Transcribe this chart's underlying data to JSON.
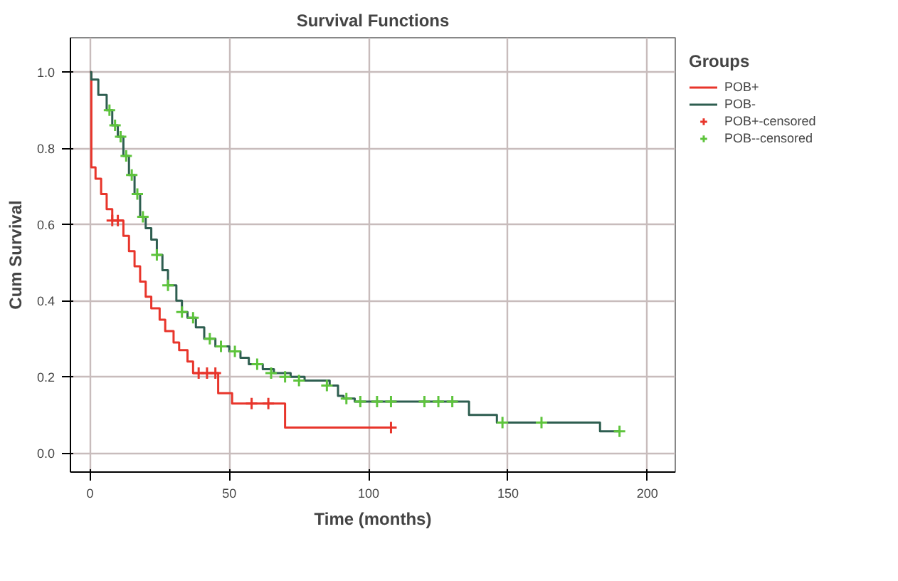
{
  "chart_data": {
    "type": "step",
    "title": "Survival Functions",
    "xlabel": "Time (months)",
    "ylabel": "Cum Survival",
    "legend_title": "Groups",
    "legend": "right",
    "grid": true,
    "xlim": [
      -7,
      210
    ],
    "ylim": [
      -0.05,
      1.09
    ],
    "xticks": [
      0,
      50,
      100,
      150,
      200
    ],
    "yticks": [
      {
        "value": 0,
        "label": "0.0"
      },
      {
        "value": 0.2,
        "label": "0.2"
      },
      {
        "value": 0.4,
        "label": "0.4"
      },
      {
        "value": 0.6,
        "label": "0.6"
      },
      {
        "value": 0.8,
        "label": "0.8"
      },
      {
        "value": 1,
        "label": "1.0"
      }
    ],
    "series": [
      {
        "name": "POB+",
        "color": "#e8352b",
        "x": [
          0,
          0.5,
          2,
          4,
          6,
          8,
          12,
          14,
          16,
          18,
          20,
          22,
          25,
          27,
          30,
          32,
          35,
          37,
          46,
          51,
          70,
          108
        ],
        "values": [
          1.0,
          0.75,
          0.72,
          0.68,
          0.64,
          0.61,
          0.57,
          0.53,
          0.49,
          0.45,
          0.41,
          0.38,
          0.35,
          0.32,
          0.29,
          0.27,
          0.24,
          0.21,
          0.157,
          0.13,
          0.067,
          0.067
        ]
      },
      {
        "name": "POB-",
        "color": "#2e5e50",
        "x": [
          0,
          0.5,
          3,
          6,
          8,
          10,
          12,
          14,
          16,
          18,
          20,
          22,
          24,
          26,
          28,
          31,
          33,
          35,
          38,
          41,
          45,
          50,
          54,
          57,
          62,
          66,
          72,
          77,
          80,
          86,
          89,
          91,
          95,
          135,
          136,
          146,
          183,
          190
        ],
        "values": [
          1.0,
          0.98,
          0.94,
          0.9,
          0.86,
          0.83,
          0.78,
          0.73,
          0.68,
          0.62,
          0.59,
          0.56,
          0.52,
          0.48,
          0.44,
          0.4,
          0.37,
          0.355,
          0.33,
          0.3,
          0.28,
          0.267,
          0.25,
          0.233,
          0.22,
          0.21,
          0.2,
          0.19,
          0.19,
          0.177,
          0.15,
          0.143,
          0.135,
          0.135,
          0.1,
          0.08,
          0.057,
          0.057
        ]
      },
      {
        "name": "POB+-censored",
        "type": "scatter",
        "marker": "cross",
        "color": "#e8352b",
        "x": [
          8,
          10,
          39,
          42,
          45,
          58,
          64,
          108
        ],
        "values": [
          0.61,
          0.61,
          0.21,
          0.21,
          0.21,
          0.13,
          0.13,
          0.067
        ]
      },
      {
        "name": "POB--censored",
        "type": "scatter",
        "marker": "cross",
        "color": "#5ec43c",
        "x": [
          7,
          9,
          11,
          13,
          15,
          17,
          19,
          24,
          28,
          33,
          37,
          43,
          47,
          52,
          60,
          65,
          70,
          75,
          85,
          92,
          97,
          103,
          108,
          120,
          125,
          130,
          148,
          162,
          190
        ],
        "values": [
          0.9,
          0.86,
          0.83,
          0.78,
          0.73,
          0.68,
          0.62,
          0.52,
          0.44,
          0.37,
          0.355,
          0.3,
          0.28,
          0.267,
          0.233,
          0.21,
          0.2,
          0.19,
          0.177,
          0.143,
          0.135,
          0.135,
          0.135,
          0.135,
          0.135,
          0.135,
          0.08,
          0.08,
          0.057
        ]
      }
    ]
  }
}
